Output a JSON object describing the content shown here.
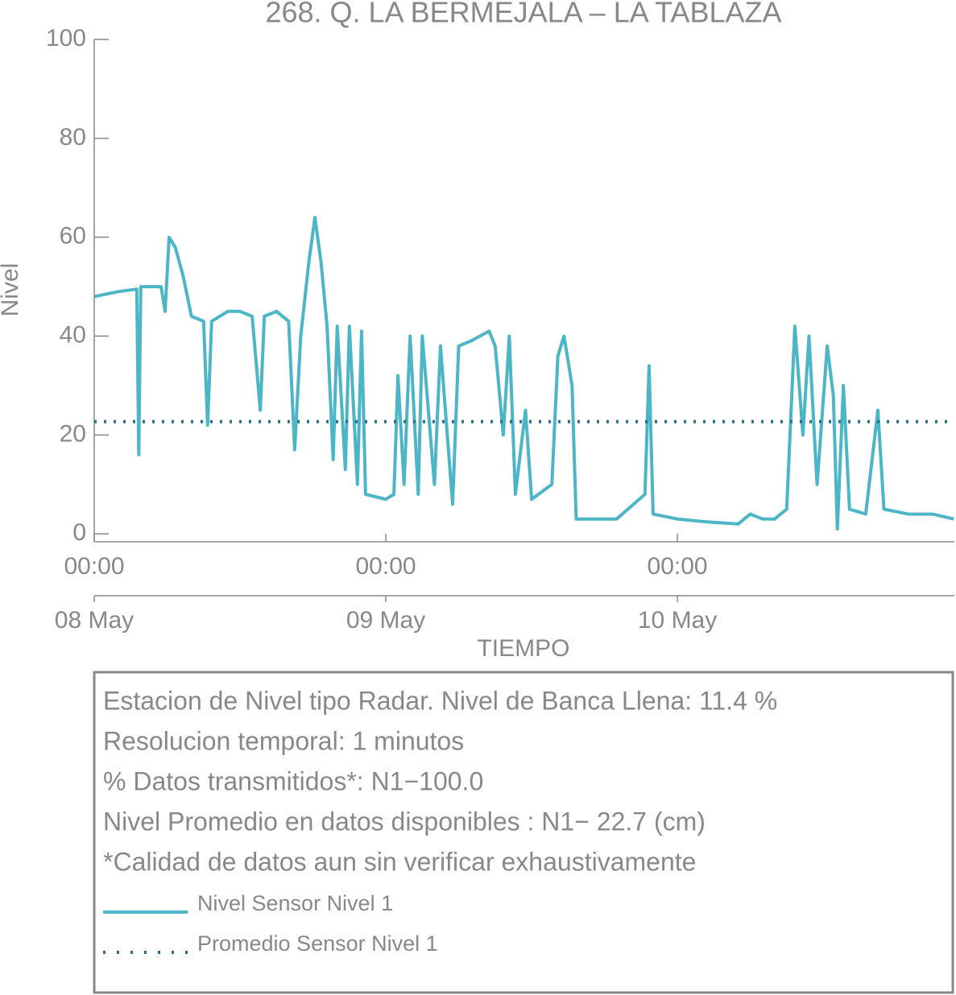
{
  "chart_data": {
    "type": "line",
    "title": "268. Q. LA BERMEJALA – LA TABLAZA",
    "x_label": "TIEMPO",
    "y_label": "Nivel",
    "x": [
      "08 May 00:00",
      "08 May 02:00",
      "08 May 03:30",
      "08 May 03:40",
      "08 May 03:50",
      "08 May 05:30",
      "08 May 05:50",
      "08 May 06:10",
      "08 May 06:40",
      "08 May 07:20",
      "08 May 08:00",
      "08 May 09:00",
      "08 May 09:20",
      "08 May 09:40",
      "08 May 11:00",
      "08 May 12:00",
      "08 May 13:00",
      "08 May 13:40",
      "08 May 14:00",
      "08 May 15:00",
      "08 May 16:00",
      "08 May 16:30",
      "08 May 17:00",
      "08 May 17:40",
      "08 May 18:10",
      "08 May 18:40",
      "08 May 19:10",
      "08 May 19:40",
      "08 May 20:00",
      "08 May 20:40",
      "08 May 21:00",
      "08 May 21:40",
      "08 May 22:00",
      "08 May 22:20",
      "09 May 00:00",
      "09 May 00:40",
      "09 May 01:00",
      "09 May 01:30",
      "09 May 02:00",
      "09 May 02:40",
      "09 May 03:00",
      "09 May 04:00",
      "09 May 04:30",
      "09 May 05:30",
      "09 May 06:00",
      "09 May 07:00",
      "09 May 08:30",
      "09 May 09:00",
      "09 May 09:40",
      "09 May 10:10",
      "09 May 10:40",
      "09 May 11:30",
      "09 May 12:00",
      "09 May 13:40",
      "09 May 14:10",
      "09 May 14:40",
      "09 May 15:20",
      "09 May 15:40",
      "09 May 17:00",
      "09 May 19:00",
      "09 May 21:20",
      "09 May 21:40",
      "09 May 22:00",
      "10 May 00:00",
      "10 May 02:00",
      "10 May 05:00",
      "10 May 06:00",
      "10 May 07:00",
      "10 May 08:00",
      "10 May 09:00",
      "10 May 09:40",
      "10 May 10:20",
      "10 May 10:50",
      "10 May 11:30",
      "10 May 12:20",
      "10 May 12:50",
      "10 May 13:10",
      "10 May 13:40",
      "10 May 14:10",
      "10 May 15:30",
      "10 May 16:30",
      "10 May 17:00",
      "10 May 19:00",
      "10 May 21:00",
      "10 May 22:45"
    ],
    "series": [
      {
        "name": "Nivel Sensor Nivel 1",
        "color": "#4db6c6",
        "values": [
          48,
          49,
          49.5,
          16,
          50,
          50,
          45,
          60,
          58,
          52,
          44,
          43,
          22,
          43,
          45,
          45,
          44,
          25,
          44,
          45,
          43,
          17,
          40,
          55,
          64,
          55,
          42,
          15,
          42,
          13,
          42,
          10,
          41,
          8,
          7,
          8,
          32,
          10,
          40,
          8,
          40,
          10,
          38,
          6,
          38,
          39,
          41,
          38,
          20,
          40,
          8,
          25,
          7,
          10,
          36,
          40,
          30,
          3,
          3,
          3,
          8,
          34,
          4,
          3,
          2.5,
          2,
          4,
          3,
          3,
          5,
          42,
          20,
          40,
          10,
          38,
          28,
          1,
          30,
          5,
          4,
          25,
          5,
          4,
          4,
          3
        ]
      }
    ],
    "mean_line": {
      "name": "Promedio Sensor Nivel 1",
      "value": 22.7,
      "color": "#2a6f8a"
    },
    "xlim": [
      "08 May 00:00",
      "10 May 22:48"
    ],
    "xticks": [
      {
        "value": "08 May 00:00",
        "label": "00:00",
        "date_label": "08 May"
      },
      {
        "value": "09 May 00:00",
        "label": "00:00",
        "date_label": "09 May"
      },
      {
        "value": "10 May 00:00",
        "label": "00:00",
        "date_label": "10 May"
      }
    ],
    "ylim": [
      -1.6,
      100
    ],
    "yticks": [
      0,
      20,
      40,
      60,
      80,
      100
    ],
    "notes": [
      "Estacion de Nivel tipo Radar. Nivel de Banca Llena: 11.4 %",
      "Resolucion temporal: 1 minutos",
      "% Datos transmitidos*: N1−100.0",
      "Nivel Promedio en datos disponibles : N1− 22.7 (cm)",
      "*Calidad de datos aun sin verificar exhaustivamente"
    ]
  }
}
